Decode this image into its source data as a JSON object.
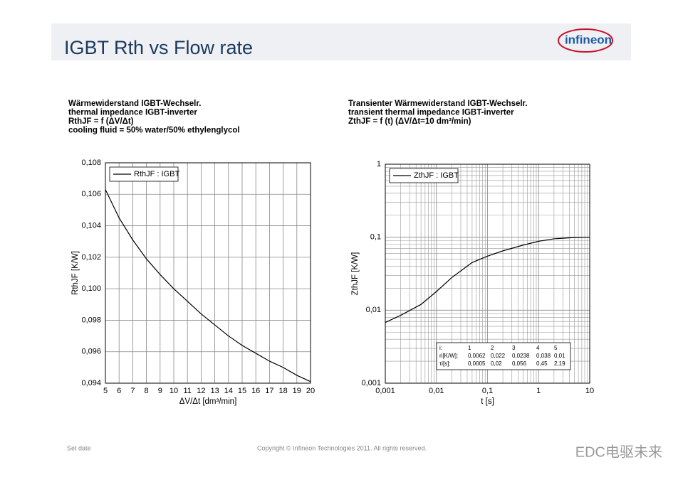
{
  "slide": {
    "title": "IGBT Rth vs Flow rate",
    "logo": "infineon",
    "footer_left": "Set date",
    "footer_center": "Copyright © Infineon Technologies 2011. All rights reserved.",
    "watermark": "EDC电驱未来"
  },
  "chart_data": [
    {
      "type": "line",
      "title": [
        "Wärmewiderstand IGBT-Wechselr.",
        "thermal impedance IGBT-inverter",
        "RthJF = f (ΔV/Δt)",
        "cooling fluid = 50% water/50% ethylenglycol"
      ],
      "xlabel": "ΔV/Δt [dm³/min]",
      "ylabel": "RthJF [K/W]",
      "legend": "top-left",
      "grid": true,
      "x": [
        5,
        6,
        7,
        8,
        9,
        10,
        11,
        12,
        13,
        14,
        15,
        16,
        17,
        18,
        19,
        20
      ],
      "series": [
        {
          "name": "RthJF : IGBT",
          "color": "#000000",
          "values": [
            0.1063,
            0.1045,
            0.1031,
            0.1019,
            0.1009,
            0.1,
            0.0992,
            0.0984,
            0.0977,
            0.097,
            0.0964,
            0.0959,
            0.0954,
            0.095,
            0.0945,
            0.0941
          ]
        }
      ],
      "xlim": [
        5,
        20
      ],
      "xticks": [
        5,
        6,
        7,
        8,
        9,
        10,
        11,
        12,
        13,
        14,
        15,
        16,
        17,
        18,
        19,
        20
      ],
      "ylim": [
        0.094,
        0.108
      ],
      "yticks": [
        {
          "value": 0.094,
          "label": "0,094"
        },
        {
          "value": 0.096,
          "label": "0,096"
        },
        {
          "value": 0.098,
          "label": "0,098"
        },
        {
          "value": 0.1,
          "label": "0,100"
        },
        {
          "value": 0.102,
          "label": "0,102"
        },
        {
          "value": 0.104,
          "label": "0,104"
        },
        {
          "value": 0.106,
          "label": "0,106"
        },
        {
          "value": 0.108,
          "label": "0,108"
        }
      ]
    },
    {
      "type": "line",
      "title": [
        "Transienter Wärmewiderstand IGBT-Wechselr.",
        "transient thermal impedance IGBT-inverter",
        "ZthJF = f (t)   (ΔV/Δt=10 dm³/min)"
      ],
      "xlabel": "t [s]",
      "ylabel": "ZthJF [K/W]",
      "legend": "top-left",
      "grid": true,
      "xscale": "log",
      "yscale": "log",
      "x": [
        0.001,
        0.002,
        0.005,
        0.01,
        0.02,
        0.05,
        0.1,
        0.2,
        0.5,
        1,
        2,
        5,
        10
      ],
      "series": [
        {
          "name": "ZthJF : IGBT",
          "color": "#000000",
          "values": [
            0.0068,
            0.0085,
            0.012,
            0.018,
            0.028,
            0.045,
            0.055,
            0.065,
            0.078,
            0.088,
            0.095,
            0.099,
            0.1
          ]
        }
      ],
      "xlim": [
        0.001,
        10
      ],
      "xticks": [
        {
          "value": 0.001,
          "label": "0,001"
        },
        {
          "value": 0.01,
          "label": "0,01"
        },
        {
          "value": 0.1,
          "label": "0,1"
        },
        1,
        10
      ],
      "ylim": [
        0.001,
        1
      ],
      "yticks": [
        {
          "value": 0.001,
          "label": "0,001"
        },
        {
          "value": 0.01,
          "label": "0,01"
        },
        {
          "value": 0.1,
          "label": "0,1"
        },
        1
      ],
      "table": {
        "rows": [
          [
            "i:",
            "1",
            "2",
            "3",
            "4",
            "5"
          ],
          [
            "ri[K/W]:",
            "0,0062",
            "0,022",
            "0,0238",
            "0,038",
            "0,01"
          ],
          [
            "τi[s]:",
            "0,0005",
            "0,02",
            "0,056",
            "0,45",
            "2,19"
          ]
        ]
      }
    }
  ]
}
